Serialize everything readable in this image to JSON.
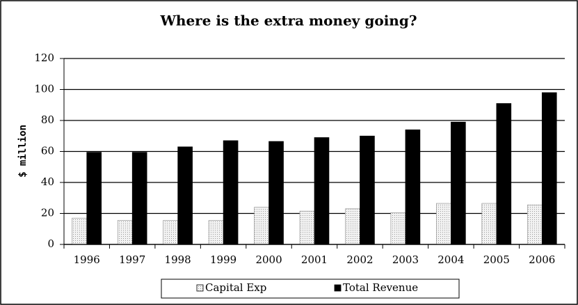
{
  "chart_data": {
    "type": "bar",
    "title": "Where is the extra money going?",
    "ylabel": "$ million",
    "categories": [
      "1996",
      "1997",
      "1998",
      "1999",
      "2000",
      "2001",
      "2002",
      "2003",
      "2004",
      "2005",
      "2006"
    ],
    "series": [
      {
        "name": "Capital Exp",
        "color": "#d9d9d9",
        "values": [
          17,
          15.5,
          15.5,
          15.5,
          24,
          21.5,
          23,
          20.5,
          26.5,
          26.5,
          25.5
        ]
      },
      {
        "name": "Total Revenue",
        "color": "#000000",
        "values": [
          59.5,
          59.5,
          63,
          67,
          66.5,
          69,
          70,
          74,
          79,
          91,
          98
        ]
      }
    ],
    "ylim": [
      0,
      120
    ],
    "yticks": [
      0,
      20,
      40,
      60,
      80,
      100,
      120
    ],
    "grid": true,
    "legend": "bottom"
  }
}
